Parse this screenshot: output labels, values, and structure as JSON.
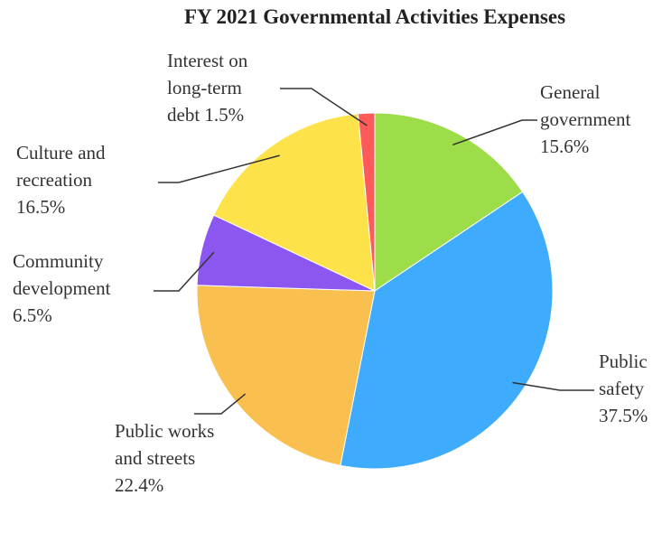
{
  "chart_data": {
    "type": "pie",
    "title": "FY 2021  Governmental Activities Expenses",
    "categories": [
      "General government",
      "Public safety",
      "Public works and streets",
      "Community development",
      "Culture and recreation",
      "Interest on long-term debt"
    ],
    "values": [
      15.6,
      37.5,
      22.4,
      6.5,
      16.5,
      1.5
    ],
    "value_labels": [
      "15.6%",
      "37.5%",
      "22.4%",
      "6.5%",
      "16.5%",
      "1.5%"
    ],
    "colors": [
      "#9ddd4a",
      "#3fabfc",
      "#f9c050",
      "#8b57f0",
      "#fde249",
      "#fd5a59"
    ]
  }
}
